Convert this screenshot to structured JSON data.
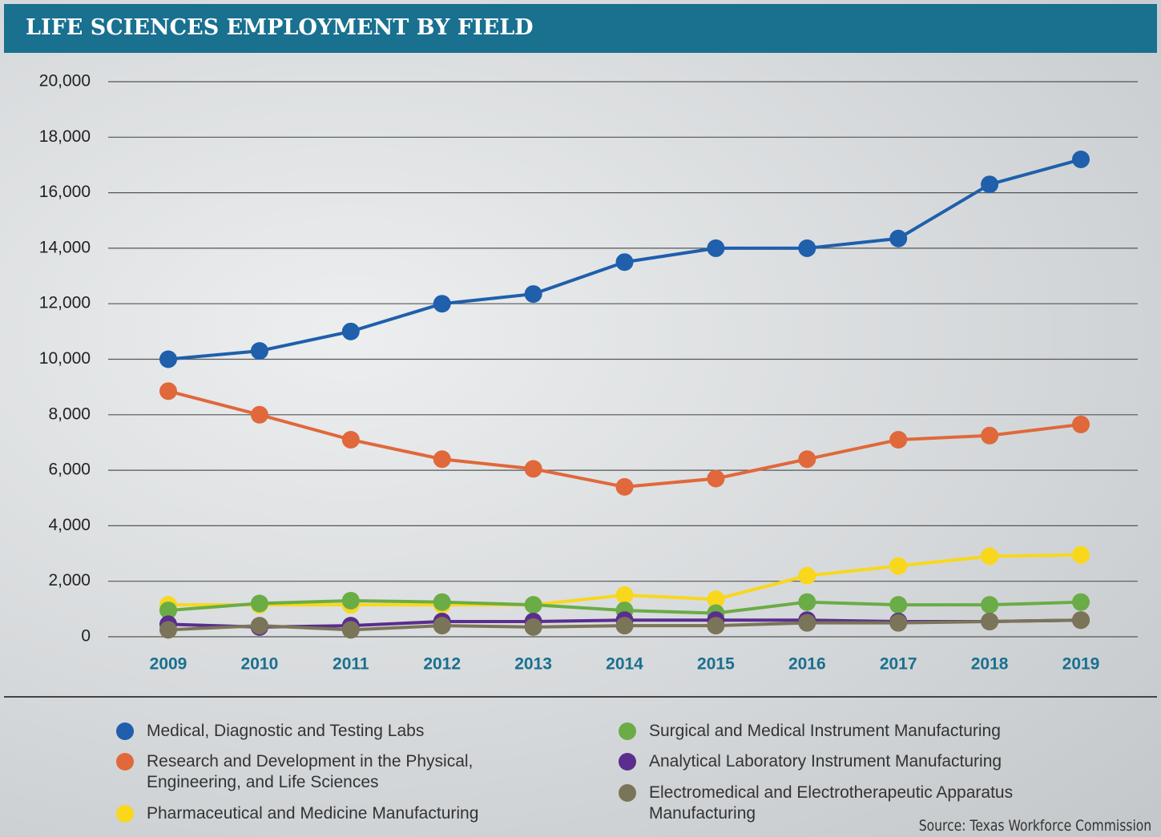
{
  "chart_data": {
    "type": "line",
    "title": "LIFE SCIENCES EMPLOYMENT BY FIELD",
    "source": "Source: Texas Workforce Commission",
    "categories": [
      "2009",
      "2010",
      "2011",
      "2012",
      "2013",
      "2014",
      "2015",
      "2016",
      "2017",
      "2018",
      "2019"
    ],
    "ylim": [
      0,
      20000
    ],
    "yticks": [
      0,
      {
        "value": 2000,
        "label": "2,000"
      },
      {
        "value": 4000,
        "label": "4,000"
      },
      {
        "value": 6000,
        "label": "6,000"
      },
      {
        "value": 8000,
        "label": "8,000"
      },
      {
        "value": 10000,
        "label": "10,000"
      },
      {
        "value": 12000,
        "label": "12,000"
      },
      {
        "value": 14000,
        "label": "14,000"
      },
      {
        "value": 16000,
        "label": "16,000"
      },
      {
        "value": 18000,
        "label": "18,000"
      },
      {
        "value": 20000,
        "label": "20,000"
      }
    ],
    "grid": true,
    "series": [
      {
        "name": "Medical, Diagnostic and Testing Labs",
        "color": "#1f5fac",
        "values": [
          10000,
          10300,
          11000,
          12000,
          12350,
          13500,
          14000,
          14000,
          14350,
          16300,
          17200
        ]
      },
      {
        "name": "Research and Development in the Physical, Engineering, and Life Sciences",
        "color": "#e0683a",
        "values": [
          8850,
          8000,
          7100,
          6400,
          6050,
          5400,
          5700,
          6400,
          7100,
          7250,
          7650
        ]
      },
      {
        "name": "Pharmaceutical and Medicine Manufacturing",
        "color": "#f9d71c",
        "values": [
          1150,
          1150,
          1150,
          1150,
          1150,
          1500,
          1350,
          2200,
          2550,
          2900,
          2950
        ]
      },
      {
        "name": "Surgical and Medical Instrument Manufacturing",
        "color": "#6aac46",
        "values": [
          950,
          1200,
          1300,
          1250,
          1150,
          950,
          850,
          1250,
          1150,
          1150,
          1250
        ]
      },
      {
        "name": "Analytical Laboratory Instrument Manufacturing",
        "color": "#5b2d8e",
        "values": [
          450,
          350,
          400,
          550,
          550,
          600,
          600,
          600,
          550,
          550,
          600
        ]
      },
      {
        "name": "Electromedical and Electrotherapeutic Apparatus Manufacturing",
        "color": "#7a7558",
        "values": [
          250,
          400,
          250,
          400,
          350,
          400,
          400,
          500,
          500,
          550,
          600
        ]
      }
    ]
  }
}
